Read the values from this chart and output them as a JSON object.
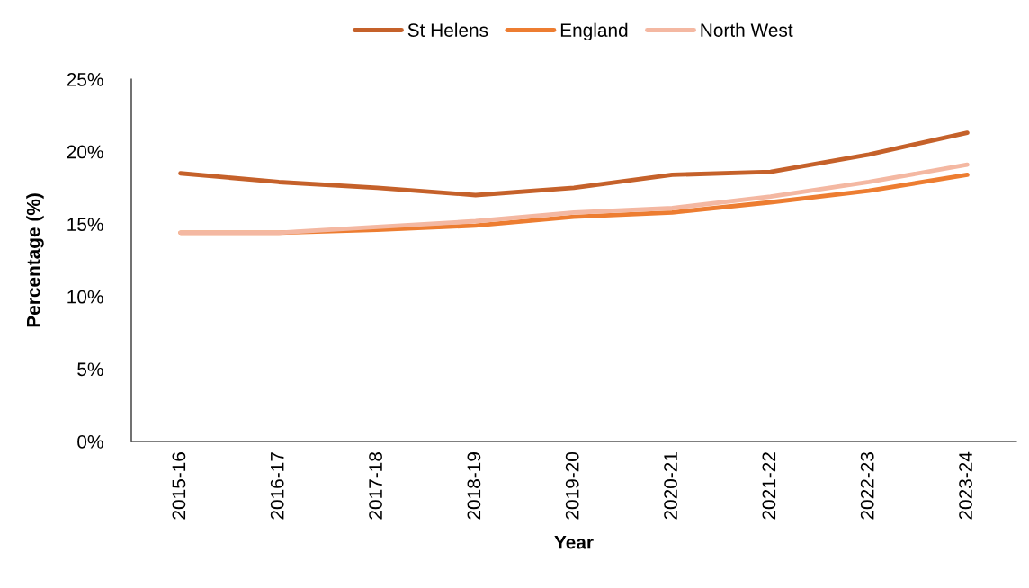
{
  "chart_data": {
    "type": "line",
    "xlabel": "Year",
    "ylabel": "Percentage (%)",
    "categories": [
      "2015-16",
      "2016-17",
      "2017-18",
      "2018-19",
      "2019-20",
      "2020-21",
      "2021-22",
      "2022-23",
      "2023-24"
    ],
    "series": [
      {
        "name": "St Helens",
        "color": "#c5612a",
        "values": [
          18.5,
          17.9,
          17.5,
          17.0,
          17.5,
          18.4,
          18.6,
          19.8,
          21.3
        ]
      },
      {
        "name": "England",
        "color": "#ed7d31",
        "values": [
          14.4,
          14.4,
          14.6,
          14.9,
          15.5,
          15.8,
          16.5,
          17.3,
          18.4
        ]
      },
      {
        "name": "North West",
        "color": "#f4b8a2",
        "values": [
          14.4,
          14.4,
          14.8,
          15.2,
          15.8,
          16.1,
          16.9,
          17.9,
          19.1
        ]
      }
    ],
    "ylim": [
      0,
      25
    ],
    "yticks": [
      {
        "value": 0,
        "label": "0%"
      },
      {
        "value": 5,
        "label": "5%"
      },
      {
        "value": 10,
        "label": "10%"
      },
      {
        "value": 15,
        "label": "15%"
      },
      {
        "value": 20,
        "label": "20%"
      },
      {
        "value": 25,
        "label": "25%"
      }
    ],
    "grid": false,
    "legend": "top",
    "marker": "none",
    "line_style": "solid"
  }
}
